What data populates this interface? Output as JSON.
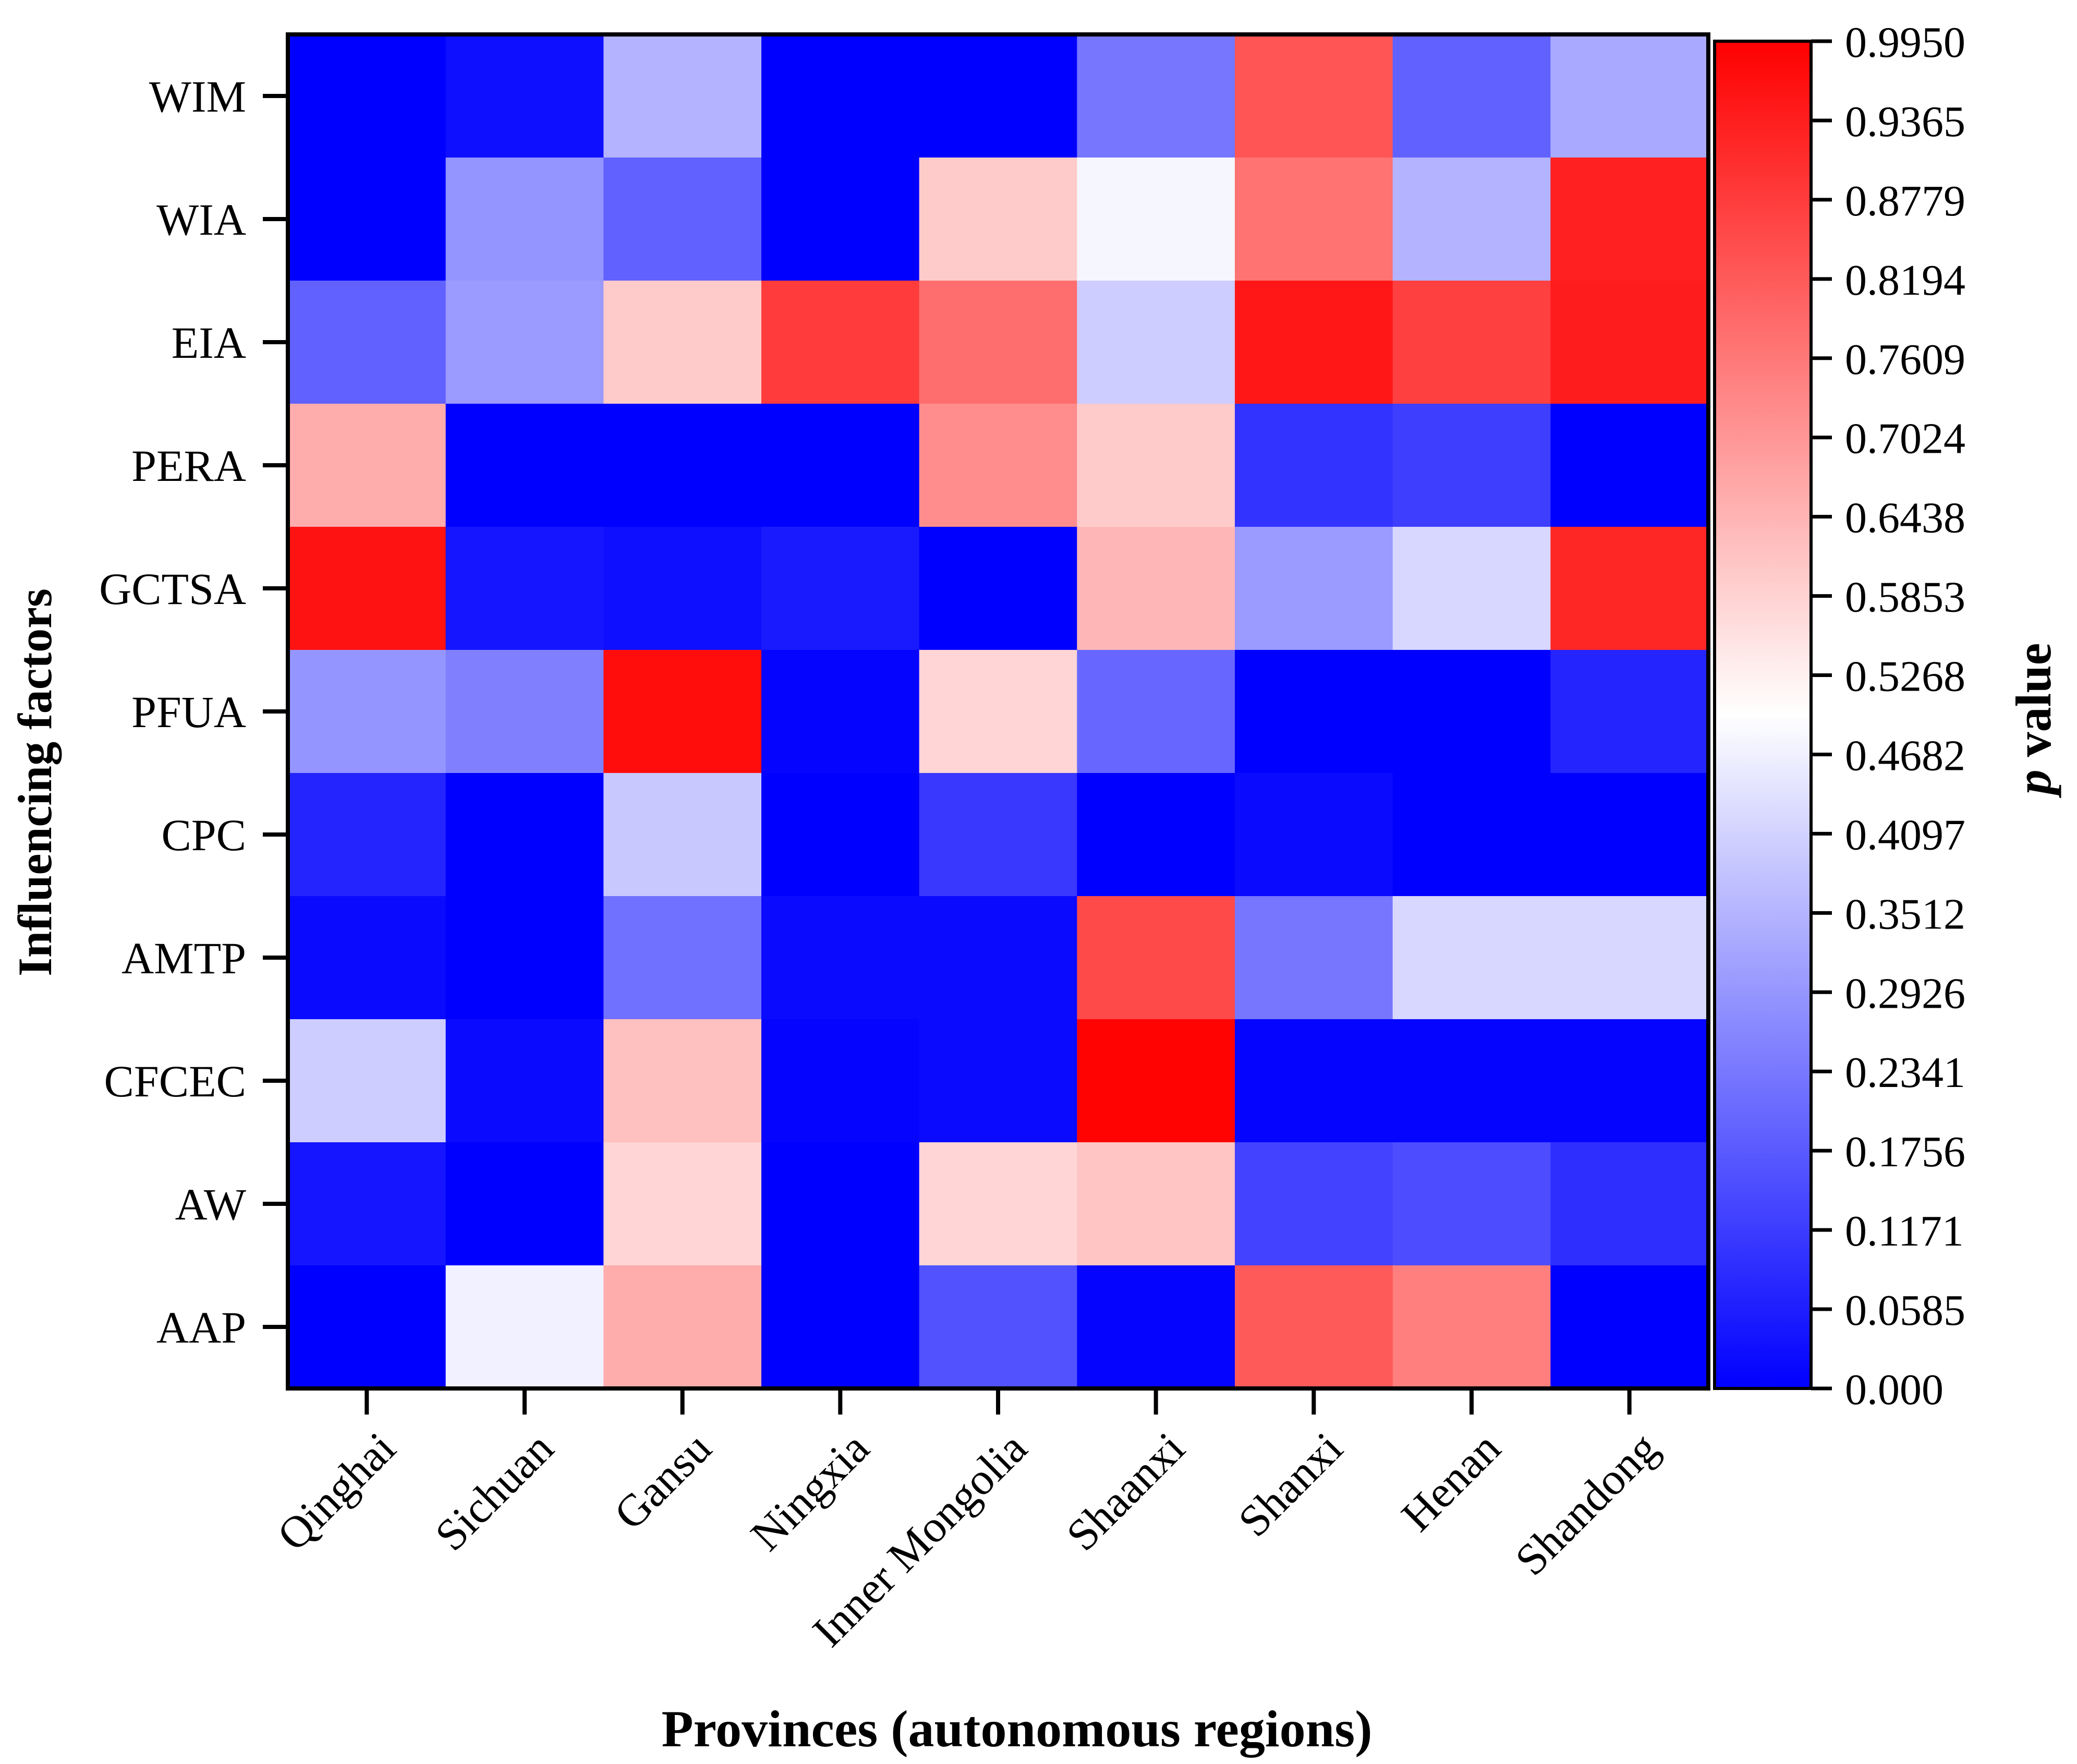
{
  "chart_data": {
    "type": "heatmap",
    "title": "",
    "xlabel": "Provinces (autonomous regions)",
    "ylabel": "Influencing factors",
    "colorbar_label_italic": "p",
    "colorbar_label_rest": " value",
    "x_categories": [
      "Qinghai",
      "Sichuan",
      "Gansu",
      "Ningxia",
      "Inner Mongolia",
      "Shaanxi",
      "Shanxi",
      "Henan",
      "Shandong"
    ],
    "y_categories": [
      "WIM",
      "WIA",
      "EIA",
      "PERA",
      "GCTSA",
      "PFUA",
      "CPC",
      "AMTP",
      "CFCEC",
      "AW",
      "AAP"
    ],
    "color_scale": {
      "min": 0.0,
      "max": 0.995,
      "low_color": "#0000ff",
      "mid_color": "#ffffff",
      "high_color": "#ff0000",
      "mid_value": 0.4975
    },
    "colorbar_ticks": [
      "0.9950",
      "0.9365",
      "0.8779",
      "0.8194",
      "0.7609",
      "0.7024",
      "0.6438",
      "0.5853",
      "0.5268",
      "0.4682",
      "0.4097",
      "0.3512",
      "0.2926",
      "0.2341",
      "0.1756",
      "0.1171",
      "0.0585",
      "0.000"
    ],
    "values": [
      [
        0.0,
        0.03,
        0.35,
        0.0,
        0.0,
        0.23,
        0.83,
        0.19,
        0.33
      ],
      [
        0.0,
        0.29,
        0.19,
        0.0,
        0.6,
        0.48,
        0.77,
        0.35,
        0.93
      ],
      [
        0.19,
        0.3,
        0.6,
        0.88,
        0.78,
        0.4,
        0.95,
        0.87,
        0.94
      ],
      [
        0.66,
        0.0,
        0.0,
        0.0,
        0.72,
        0.6,
        0.1,
        0.12,
        0.0
      ],
      [
        0.96,
        0.04,
        0.03,
        0.05,
        0.0,
        0.64,
        0.3,
        0.42,
        0.92
      ],
      [
        0.29,
        0.25,
        0.97,
        0.01,
        0.58,
        0.2,
        0.0,
        0.0,
        0.07
      ],
      [
        0.07,
        0.0,
        0.39,
        0.0,
        0.11,
        0.0,
        0.02,
        0.0,
        0.0
      ],
      [
        0.02,
        0.0,
        0.22,
        0.02,
        0.02,
        0.85,
        0.23,
        0.42,
        0.42
      ],
      [
        0.4,
        0.02,
        0.62,
        0.01,
        0.02,
        0.99,
        0.01,
        0.01,
        0.01
      ],
      [
        0.04,
        0.0,
        0.58,
        0.0,
        0.58,
        0.61,
        0.13,
        0.15,
        0.09
      ],
      [
        0.0,
        0.47,
        0.66,
        0.0,
        0.16,
        0.01,
        0.82,
        0.75,
        0.0
      ]
    ]
  }
}
